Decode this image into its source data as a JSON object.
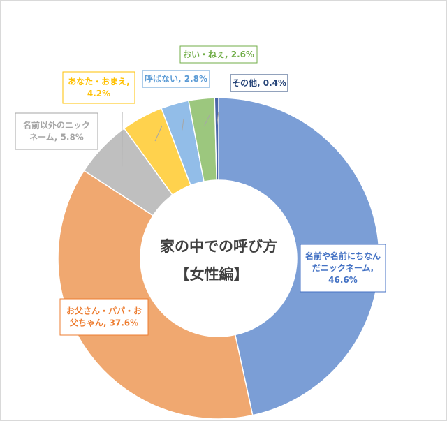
{
  "chart_data": {
    "type": "pie",
    "title": "家の中での呼び方",
    "subtitle": "【女性編】",
    "slices": [
      {
        "label": "名前や名前にちなんだニックネーム",
        "value": 46.6,
        "value_label": "46.6%",
        "color": "#7b9ed6",
        "label_color": "#4472c4",
        "label_lines": [
          "名前や名前にちなん",
          "だニックネーム,",
          "46.6%"
        ]
      },
      {
        "label": "お父さん・パパ・お父ちゃん",
        "value": 37.6,
        "value_label": "37.6%",
        "color": "#f0a870",
        "label_color": "#ed7d31",
        "label_lines": [
          "お父さん・パパ・お",
          "父ちゃん, 37.6%"
        ]
      },
      {
        "label": "名前以外のニックネーム",
        "value": 5.8,
        "value_label": "5.8%",
        "color": "#bfbfbf",
        "label_color": "#a5a5a5",
        "label_lines": [
          "名前以外のニック",
          "ネーム, 5.8%"
        ]
      },
      {
        "label": "あなた・おまえ",
        "value": 4.2,
        "value_label": "4.2%",
        "color": "#ffd24d",
        "label_color": "#ffc000",
        "label_lines": [
          "あなた・おまえ,",
          "4.2%"
        ]
      },
      {
        "label": "呼ばない",
        "value": 2.8,
        "value_label": "2.8%",
        "color": "#92bde8",
        "label_color": "#5b9bd5",
        "label_lines": [
          "呼ばない, 2.8%"
        ]
      },
      {
        "label": "おい・ねぇ",
        "value": 2.6,
        "value_label": "2.6%",
        "color": "#9cc77e",
        "label_color": "#70ad47",
        "label_lines": [
          "おい・ねぇ, 2.6%"
        ]
      },
      {
        "label": "その他",
        "value": 0.4,
        "value_label": "0.4%",
        "color": "#4a66a8",
        "label_color": "#264478",
        "label_lines": [
          "その他, 0.4%"
        ]
      }
    ]
  }
}
